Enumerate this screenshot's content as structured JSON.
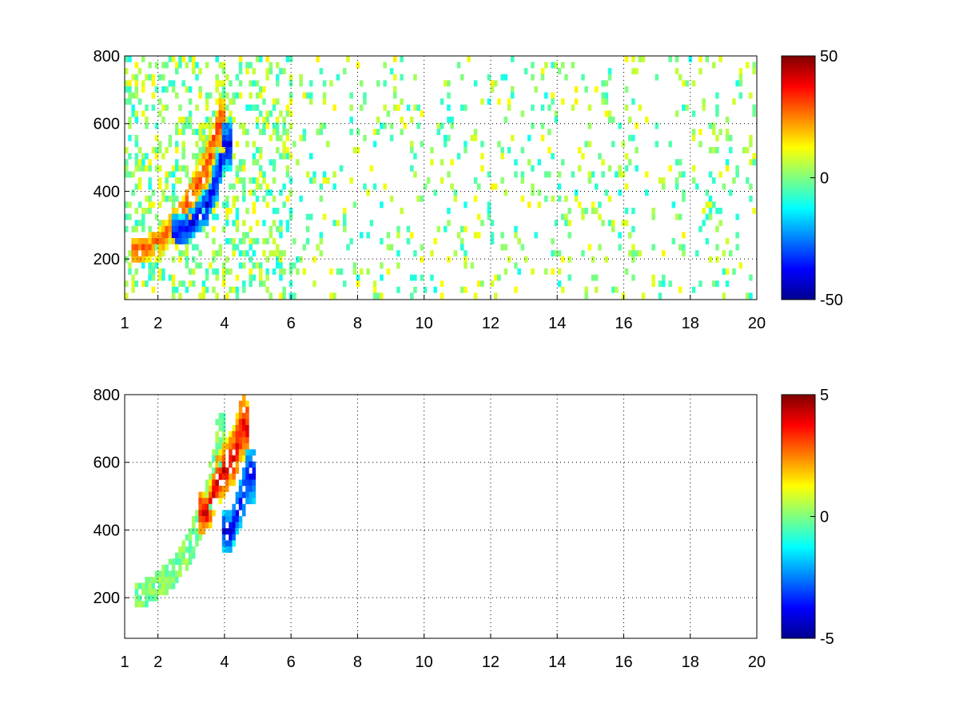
{
  "chart_data": [
    {
      "type": "heatmap",
      "title": "",
      "xlabel": "",
      "ylabel": "",
      "x_ticks": [
        "1",
        "2",
        "4",
        "6",
        "8",
        "10",
        "12",
        "14",
        "16",
        "18",
        "20"
      ],
      "y_ticks": [
        "200",
        "400",
        "600",
        "800"
      ],
      "xlim": [
        1,
        20
      ],
      "ylim": [
        80,
        800
      ],
      "grid": true,
      "colorbar": {
        "min": -50,
        "max": 50,
        "tick_labels": [
          "50",
          "0",
          "-50"
        ]
      },
      "colormap": "jet",
      "features": [
        {
          "description": "positive ridge",
          "path_x": [
            1.5,
            2.0,
            2.5,
            3.0,
            3.5,
            3.8
          ],
          "path_y": [
            225,
            250,
            300,
            380,
            480,
            600
          ],
          "value": 30
        },
        {
          "description": "negative ridge",
          "path_x": [
            2.7,
            3.0,
            3.5,
            3.8,
            4.0
          ],
          "path_y": [
            280,
            300,
            360,
            450,
            540
          ],
          "value": -40
        }
      ]
    },
    {
      "type": "heatmap",
      "title": "",
      "xlabel": "",
      "ylabel": "",
      "x_ticks": [
        "1",
        "2",
        "4",
        "6",
        "8",
        "10",
        "12",
        "14",
        "16",
        "18",
        "20"
      ],
      "y_ticks": [
        "200",
        "400",
        "600",
        "800"
      ],
      "xlim": [
        1,
        20
      ],
      "ylim": [
        80,
        800
      ],
      "grid": true,
      "colorbar": {
        "min": -5,
        "max": 5,
        "tick_labels": [
          "5",
          "0",
          "-5"
        ]
      },
      "colormap": "jet",
      "features": [
        {
          "description": "band",
          "path_x": [
            1.6,
            2.0,
            2.5,
            3.0,
            3.5,
            3.8
          ],
          "path_y": [
            215,
            235,
            280,
            360,
            480,
            650
          ],
          "value": 0
        },
        {
          "description": "positive patch",
          "path_x": [
            3.5,
            3.8,
            4.3,
            4.5
          ],
          "path_y": [
            450,
            550,
            620,
            700
          ],
          "value": 4
        },
        {
          "description": "negative patch",
          "path_x": [
            4.2,
            4.5,
            4.7
          ],
          "path_y": [
            400,
            480,
            560
          ],
          "value": -4
        }
      ]
    }
  ]
}
